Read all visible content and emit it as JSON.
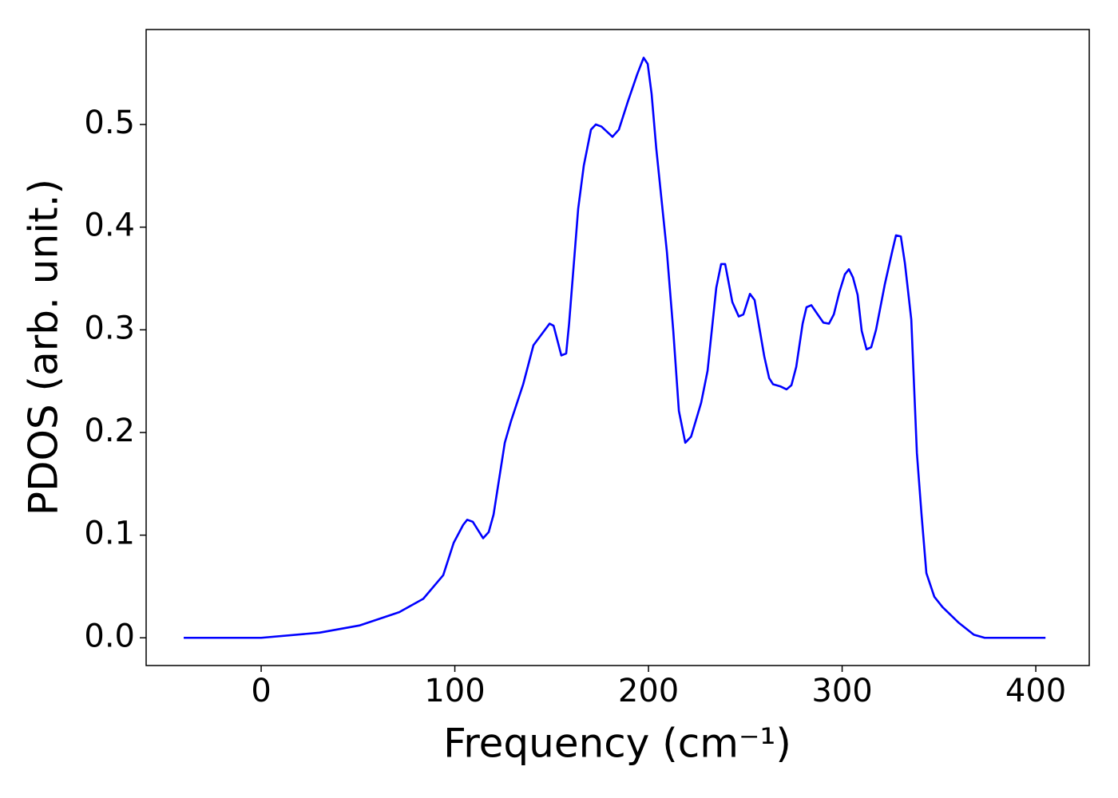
{
  "chart_data": {
    "type": "line",
    "xlabel": "Frequency (cm⁻¹)",
    "ylabel": "PDOS (arb. unit.)",
    "x": [
      -40,
      -37.5,
      0,
      30.1,
      50.7,
      71.3,
      83.7,
      94,
      99.4,
      104.3,
      106.4,
      109.3,
      114.6,
      117.5,
      120,
      125.8,
      129,
      135.3,
      140.6,
      148.9,
      151,
      155,
      157.5,
      159,
      163.7,
      166.6,
      170.3,
      172.8,
      175.7,
      181.4,
      184.7,
      189.3,
      194.2,
      197.5,
      199.6,
      201.6,
      204,
      209.5,
      212.8,
      215.7,
      219,
      222,
      227.2,
      230.5,
      235,
      237.5,
      239.6,
      243.3,
      246.6,
      249,
      252.4,
      254.8,
      259.8,
      262.3,
      264.3,
      268,
      271.3,
      273.8,
      276.3,
      279.6,
      281.6,
      284.1,
      287,
      290.3,
      293.2,
      295.7,
      298.6,
      301.4,
      303.5,
      305.6,
      308,
      310.1,
      312.6,
      315,
      317.5,
      322,
      325.8,
      327.8,
      330.3,
      332.4,
      335.7,
      338.6,
      341,
      343.5,
      347.6,
      351.8,
      360,
      368,
      373.6,
      405
    ],
    "series": [
      {
        "name": "PDOS",
        "color": "#0000ff",
        "values": [
          0,
          0,
          0,
          0.005,
          0.012,
          0.025,
          0.038,
          0.061,
          0.0925,
          0.11,
          0.115,
          0.113,
          0.097,
          0.103,
          0.12,
          0.19,
          0.211,
          0.247,
          0.285,
          0.306,
          0.304,
          0.275,
          0.277,
          0.306,
          0.418,
          0.46,
          0.495,
          0.5,
          0.498,
          0.488,
          0.495,
          0.522,
          0.549,
          0.565,
          0.559,
          0.53,
          0.477,
          0.376,
          0.299,
          0.221,
          0.19,
          0.196,
          0.229,
          0.26,
          0.341,
          0.364,
          0.364,
          0.327,
          0.313,
          0.315,
          0.335,
          0.329,
          0.274,
          0.253,
          0.247,
          0.245,
          0.242,
          0.246,
          0.264,
          0.306,
          0.322,
          0.324,
          0.316,
          0.307,
          0.306,
          0.315,
          0.337,
          0.354,
          0.359,
          0.351,
          0.334,
          0.299,
          0.281,
          0.283,
          0.3,
          0.344,
          0.376,
          0.392,
          0.391,
          0.365,
          0.31,
          0.18,
          0.12,
          0.063,
          0.04,
          0.03,
          0.015,
          0.003,
          0,
          0
        ]
      }
    ],
    "xlim": [
      -59.4,
      427.6
    ],
    "ylim": [
      -0.027,
      0.5925
    ],
    "xticks": [
      0,
      100,
      200,
      300,
      400
    ],
    "yticks": [
      {
        "value": 0,
        "label": "0.0"
      },
      0.1,
      0.2,
      0.3,
      0.4,
      0.5
    ]
  }
}
